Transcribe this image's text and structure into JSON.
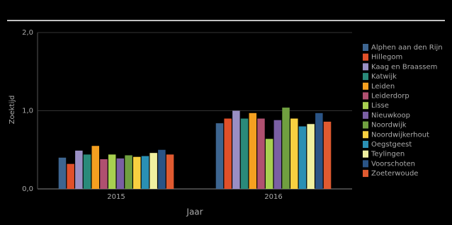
{
  "chart_data": {
    "type": "bar",
    "x_label": "Jaar",
    "y_label": "Zoektijd",
    "categories": [
      "2015",
      "2016"
    ],
    "series": [
      {
        "name": "Alphen aan den Rijn",
        "color": "#3d6590",
        "values": [
          0.4,
          0.84
        ]
      },
      {
        "name": "Hillegom",
        "color": "#e0502a",
        "values": [
          0.32,
          0.9
        ]
      },
      {
        "name": "Kaag en Braassem",
        "color": "#9a8fc4",
        "values": [
          0.49,
          1.0
        ]
      },
      {
        "name": "Katwijk",
        "color": "#2a8a7a",
        "values": [
          0.44,
          0.9
        ]
      },
      {
        "name": "Leiden",
        "color": "#f5a020",
        "values": [
          0.55,
          0.97
        ]
      },
      {
        "name": "Leiderdorp",
        "color": "#b05070",
        "values": [
          0.38,
          0.9
        ]
      },
      {
        "name": "Lisse",
        "color": "#a8d050",
        "values": [
          0.44,
          0.64
        ]
      },
      {
        "name": "Nieuwkoop",
        "color": "#7a5fa4",
        "values": [
          0.39,
          0.88
        ]
      },
      {
        "name": "Noordwijk",
        "color": "#70a040",
        "values": [
          0.43,
          1.04
        ]
      },
      {
        "name": "Noordwijkerhout",
        "color": "#f8d040",
        "values": [
          0.41,
          0.9
        ]
      },
      {
        "name": "Oegstgeest",
        "color": "#2a90b4",
        "values": [
          0.42,
          0.8
        ]
      },
      {
        "name": "Teylingen",
        "color": "#f0f0a0",
        "values": [
          0.46,
          0.83
        ]
      },
      {
        "name": "Voorschoten",
        "color": "#2a5486",
        "values": [
          0.5,
          0.97
        ]
      },
      {
        "name": "Zoeterwoude",
        "color": "#e05a30",
        "values": [
          0.44,
          0.86
        ]
      }
    ],
    "ylim": [
      0,
      2
    ],
    "yticks": [
      {
        "value": 0,
        "label": "0,0"
      },
      {
        "value": 1,
        "label": "1,0"
      },
      {
        "value": 2,
        "label": "2,0"
      }
    ],
    "grid": true,
    "legend": "right"
  }
}
